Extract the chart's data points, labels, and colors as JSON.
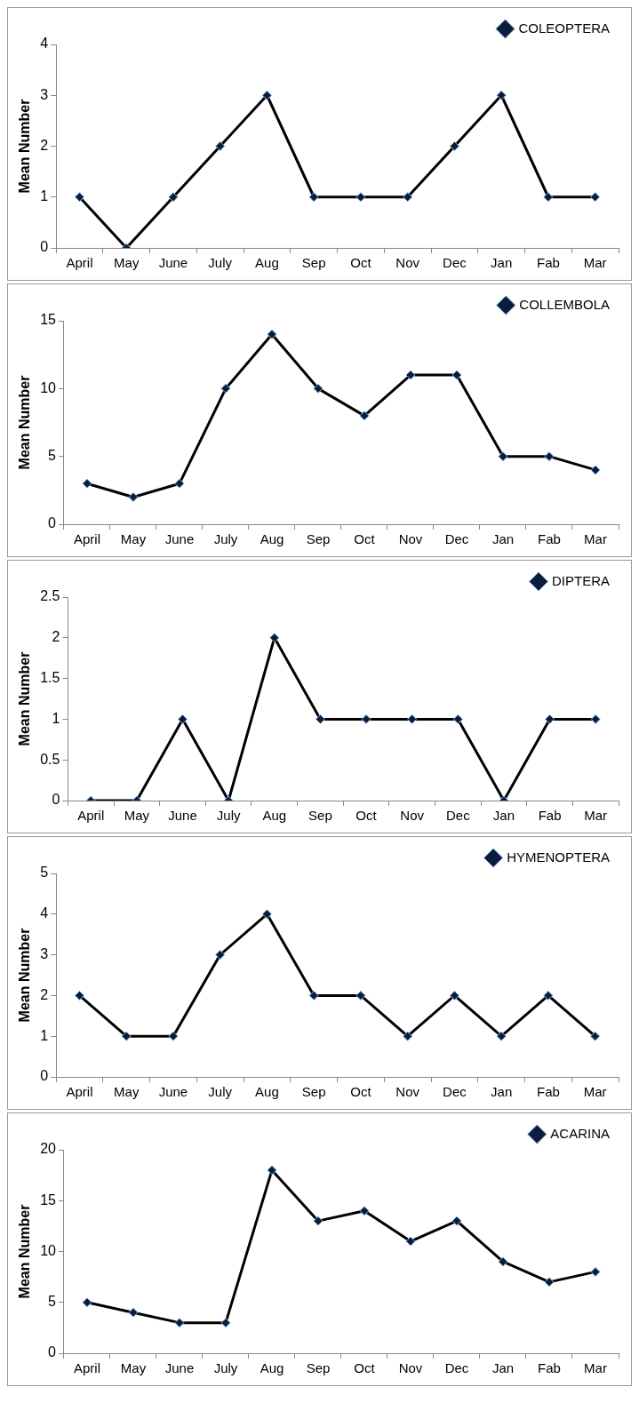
{
  "chart_data": [
    {
      "type": "line",
      "ylabel": "Mean Number",
      "categories": [
        "April",
        "May",
        "June",
        "July",
        "Aug",
        "Sep",
        "Oct",
        "Nov",
        "Dec",
        "Jan",
        "Fab",
        "Mar"
      ],
      "series": [
        {
          "name": "COLEOPTERA",
          "color": "#000000",
          "values": [
            1,
            0,
            1,
            2,
            3,
            1,
            1,
            1,
            2,
            3,
            1,
            1
          ]
        }
      ],
      "ylim": [
        0,
        4
      ],
      "yticks": [
        0,
        1,
        2,
        3,
        4
      ],
      "grid": false,
      "legend": "top right",
      "marker": "diamond",
      "line_style": "solid"
    },
    {
      "type": "line",
      "ylabel": "Mean Number",
      "categories": [
        "April",
        "May",
        "June",
        "July",
        "Aug",
        "Sep",
        "Oct",
        "Nov",
        "Dec",
        "Jan",
        "Fab",
        "Mar"
      ],
      "series": [
        {
          "name": "COLLEMBOLA",
          "color": "#000000",
          "values": [
            3,
            2,
            3,
            10,
            14,
            10,
            8,
            11,
            11,
            5,
            5,
            4
          ]
        }
      ],
      "ylim": [
        0,
        15
      ],
      "yticks": [
        0,
        5,
        10,
        15
      ],
      "grid": false,
      "legend": "top right",
      "marker": "diamond",
      "line_style": "solid"
    },
    {
      "type": "line",
      "ylabel": "Mean Number",
      "categories": [
        "April",
        "May",
        "June",
        "July",
        "Aug",
        "Sep",
        "Oct",
        "Nov",
        "Dec",
        "Jan",
        "Fab",
        "Mar"
      ],
      "series": [
        {
          "name": "DIPTERA",
          "color": "#000000",
          "values": [
            0,
            0,
            1,
            0,
            2,
            1,
            1,
            1,
            1,
            0,
            1,
            1
          ]
        }
      ],
      "ylim": [
        0,
        2.5
      ],
      "yticks": [
        0,
        0.5,
        1,
        1.5,
        2,
        2.5
      ],
      "grid": false,
      "legend": "top right",
      "marker": "diamond",
      "line_style": "solid"
    },
    {
      "type": "line",
      "ylabel": "Mean Number",
      "categories": [
        "April",
        "May",
        "June",
        "July",
        "Aug",
        "Sep",
        "Oct",
        "Nov",
        "Dec",
        "Jan",
        "Fab",
        "Mar"
      ],
      "series": [
        {
          "name": "HYMENOPTERA",
          "color": "#000000",
          "values": [
            2,
            1,
            1,
            3,
            4,
            2,
            2,
            1,
            2,
            1,
            2,
            1
          ]
        }
      ],
      "ylim": [
        0,
        5
      ],
      "yticks": [
        0,
        1,
        2,
        3,
        4,
        5
      ],
      "grid": false,
      "legend": "top right",
      "marker": "diamond",
      "line_style": "solid"
    },
    {
      "type": "line",
      "ylabel": "Mean Number",
      "categories": [
        "April",
        "May",
        "June",
        "July",
        "Aug",
        "Sep",
        "Oct",
        "Nov",
        "Dec",
        "Jan",
        "Fab",
        "Mar"
      ],
      "series": [
        {
          "name": "ACARINA",
          "color": "#000000",
          "values": [
            5,
            4,
            3,
            3,
            18,
            13,
            14,
            11,
            13,
            9,
            7,
            8
          ]
        }
      ],
      "ylim": [
        0,
        20
      ],
      "yticks": [
        0,
        5,
        10,
        15,
        20
      ],
      "grid": false,
      "legend": "top right",
      "marker": "diamond",
      "line_style": "solid"
    }
  ]
}
